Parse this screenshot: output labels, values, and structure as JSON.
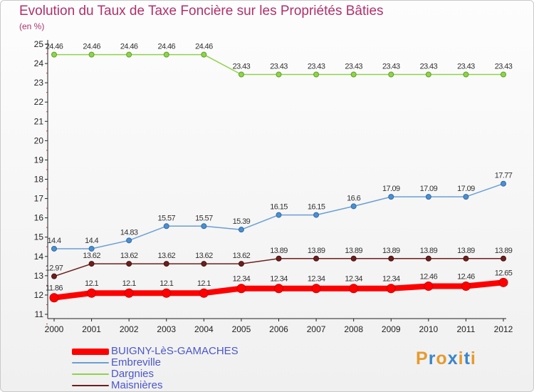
{
  "title": "Evolution du Taux de Taxe Foncière sur les Propriétés Bâties",
  "subtitle": "(en %)",
  "logo_text": "Proxiti",
  "colors": {
    "title": "#b0306b",
    "legend_text": "#4a57c9",
    "axis": "#222222"
  },
  "chart_data": {
    "type": "line",
    "title": "Evolution du Taux de Taxe Foncière sur les Propriétés Bâties",
    "ylabel": "(en %)",
    "x": [
      "2000",
      "2001",
      "2002",
      "2003",
      "2004",
      "2005",
      "2006",
      "2007",
      "2008",
      "2009",
      "2010",
      "2011",
      "2012"
    ],
    "ylim": [
      11,
      25
    ],
    "yticks": [
      11,
      12,
      13,
      14,
      15,
      16,
      17,
      18,
      19,
      20,
      21,
      22,
      23,
      24,
      25
    ],
    "grid": false,
    "legend": "bottom-left",
    "series": [
      {
        "name": "BUIGNY-LèS-GAMACHES",
        "color": "#ff0000",
        "values": [
          11.86,
          12.1,
          12.1,
          12.1,
          12.1,
          12.34,
          12.34,
          12.34,
          12.34,
          12.34,
          12.46,
          12.46,
          12.65
        ],
        "labels": [
          "11.86",
          "12.1",
          "12.1",
          "12.1",
          "12.1",
          "12.34",
          "12.34",
          "12.34",
          "12.34",
          "12.34",
          "12.46",
          "12.46",
          "12.65"
        ]
      },
      {
        "name": "Embreville",
        "color": "#6a9fd4",
        "values": [
          14.4,
          14.4,
          14.83,
          15.57,
          15.57,
          15.39,
          16.15,
          16.15,
          16.6,
          17.09,
          17.09,
          17.09,
          17.77
        ],
        "labels": [
          "14.4",
          "14.4",
          "14.83",
          "15.57",
          "15.57",
          "15.39",
          "16.15",
          "16.15",
          "16.6",
          "17.09",
          "17.09",
          "17.09",
          "17.77"
        ]
      },
      {
        "name": "Dargnies",
        "color": "#8fd34a",
        "values": [
          24.46,
          24.46,
          24.46,
          24.46,
          24.46,
          23.43,
          23.43,
          23.43,
          23.43,
          23.43,
          23.43,
          23.43,
          23.43
        ],
        "labels": [
          "24.46",
          "24.46",
          "24.46",
          "24.46",
          "24.46",
          "23.43",
          "23.43",
          "23.43",
          "23.43",
          "23.43",
          "23.43",
          "23.43",
          "23.43"
        ]
      },
      {
        "name": "Maisnières",
        "color": "#6b1f1f",
        "values": [
          12.97,
          13.62,
          13.62,
          13.62,
          13.62,
          13.62,
          13.89,
          13.89,
          13.89,
          13.89,
          13.89,
          13.89,
          13.89
        ],
        "labels": [
          "12.97",
          "13.62",
          "13.62",
          "13.62",
          "13.62",
          "13.62",
          "13.89",
          "13.89",
          "13.89",
          "13.89",
          "13.89",
          "13.89",
          "13.89"
        ]
      }
    ]
  }
}
